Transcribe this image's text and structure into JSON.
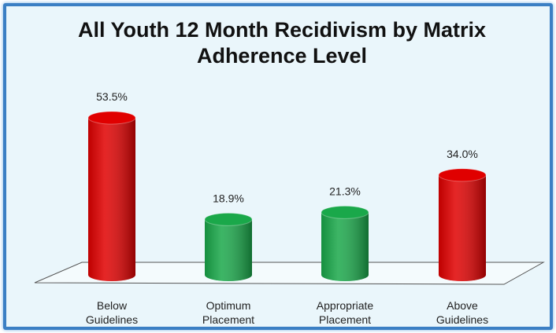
{
  "chart_data": {
    "type": "bar",
    "title": "All Youth 12 Month Recidivism by Matrix Adherence Level",
    "categories": [
      "Below Guidelines",
      "Optimum Placement",
      "Appropriate Placement",
      "Above Guidelines"
    ],
    "values": [
      53.5,
      18.9,
      21.3,
      34.0
    ],
    "value_labels": [
      "53.5%",
      "18.9%",
      "21.3%",
      "34.0%"
    ],
    "colors": [
      "#e00000",
      "#1aa84a",
      "#1aa84a",
      "#e00000"
    ]
  }
}
